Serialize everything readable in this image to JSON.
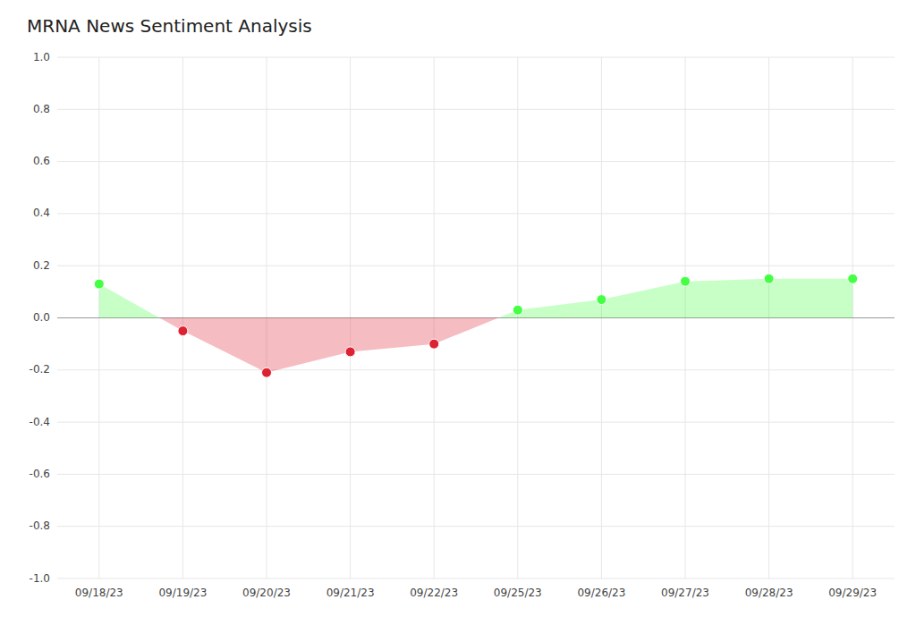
{
  "chart_data": {
    "type": "area",
    "title": "MRNA News Sentiment Analysis",
    "categories": [
      "09/18/23",
      "09/19/23",
      "09/20/23",
      "09/21/23",
      "09/22/23",
      "09/25/23",
      "09/26/23",
      "09/27/23",
      "09/28/23",
      "09/29/23"
    ],
    "values": [
      0.13,
      -0.05,
      -0.21,
      -0.13,
      -0.1,
      0.03,
      0.07,
      0.14,
      0.15,
      0.15
    ],
    "colors": [
      "#44ff44",
      "#dd2233",
      "#dd2233",
      "#dd2233",
      "#dd2233",
      "#44ff44",
      "#44ff44",
      "#44ff44",
      "#44ff44",
      "#44ff44"
    ],
    "ylim": [
      -1.0,
      1.0
    ],
    "yticks": [
      {
        "value": -1.0,
        "label": "-1.0"
      },
      -0.8,
      -0.6,
      -0.4,
      -0.2,
      {
        "value": 0.0,
        "label": "0.0"
      },
      0.2,
      0.4,
      0.6,
      0.8,
      {
        "value": 1.0,
        "label": "1.0"
      }
    ],
    "grid": true
  }
}
